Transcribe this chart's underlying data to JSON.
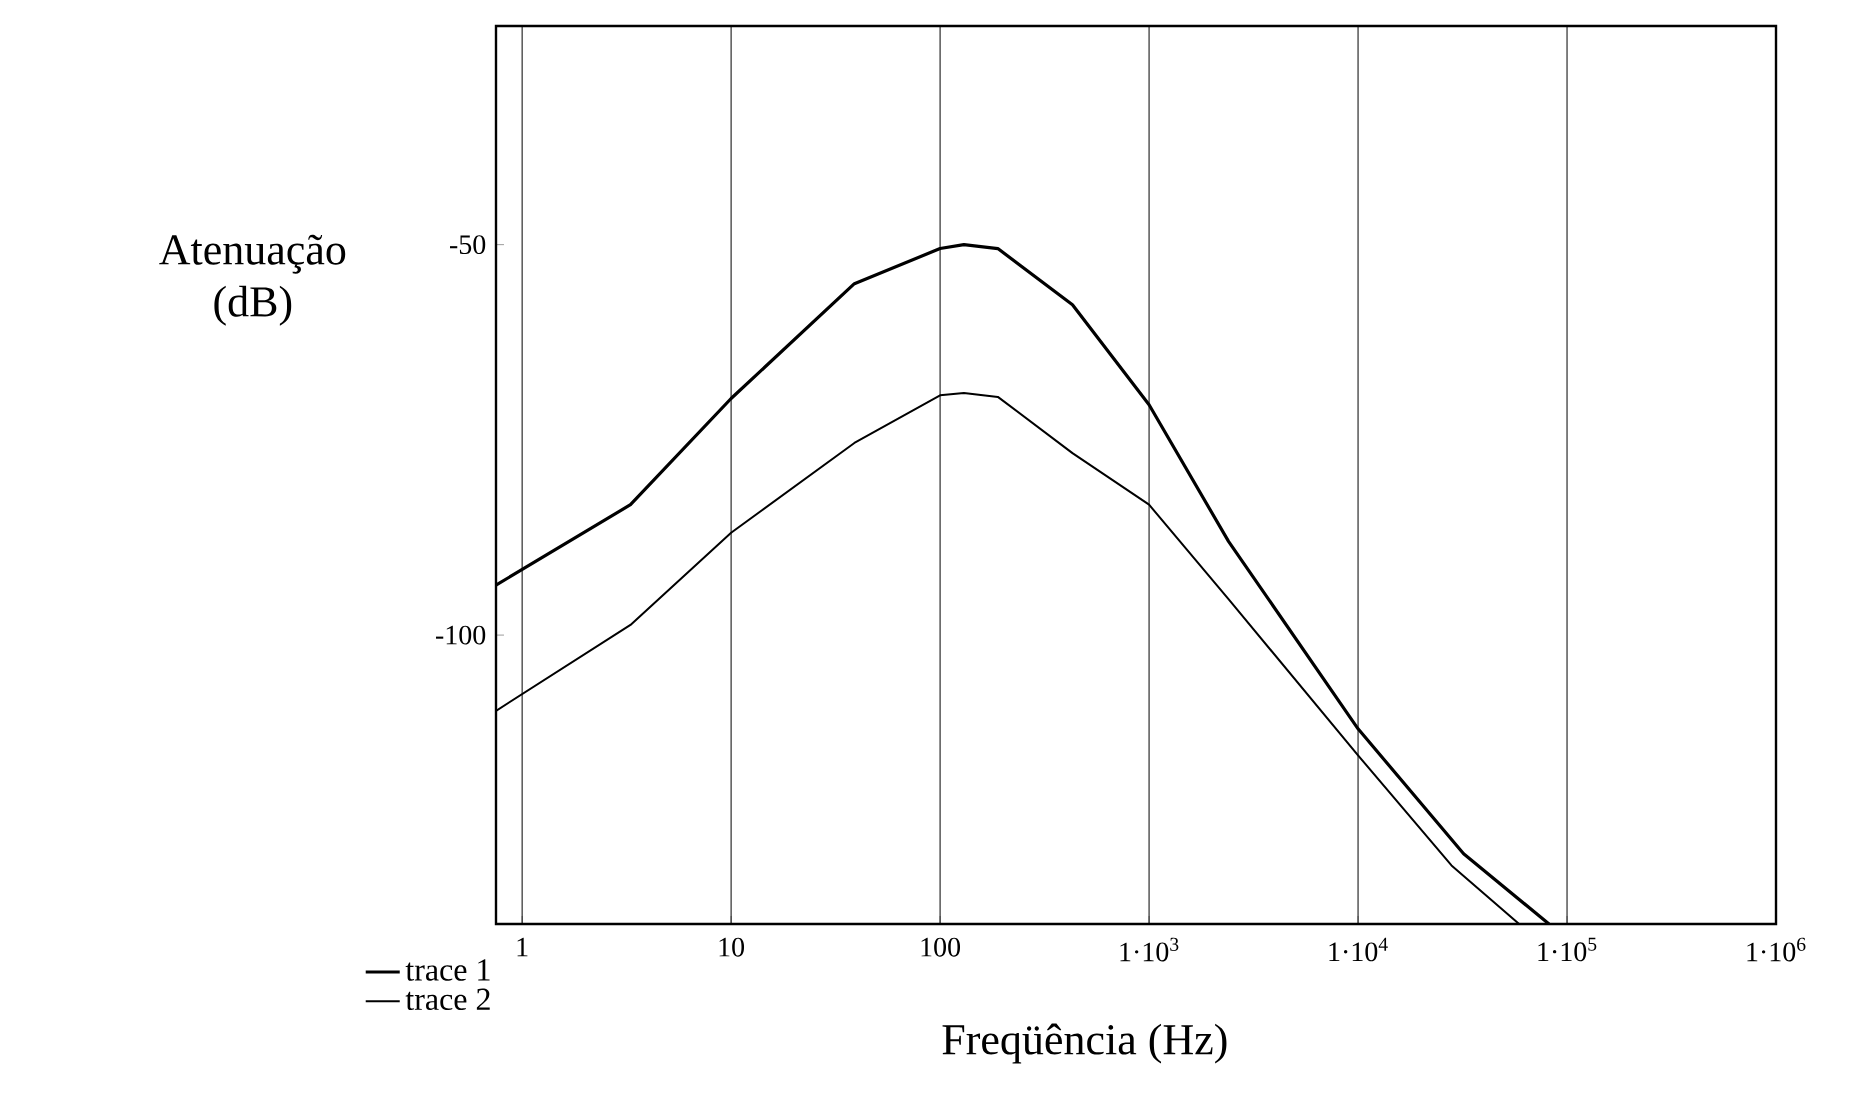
{
  "chart_data": {
    "type": "line",
    "xlabel": "Freqüência (Hz)",
    "ylabel": "Atenuação (dB)",
    "log": "x",
    "grid": "x",
    "legend": "bottom left",
    "line_style": "solid",
    "marker": "none",
    "xlim": [
      0.75,
      1000000
    ],
    "ylim": [
      -137,
      -22
    ],
    "xticks": [
      1,
      10,
      100,
      {
        "value": 1000,
        "label": "1·10$^{3}$"
      },
      {
        "value": 10000,
        "label": "1·10$^{4}$"
      },
      {
        "value": 100000,
        "label": "1·10$^{5}$"
      },
      {
        "value": 1000000,
        "label": "1·10$^{6}$"
      }
    ],
    "yticks": [
      -50,
      -100
    ],
    "series": [
      {
        "name": "trace 1",
        "color": "#000000",
        "x": [
          0.75,
          3.3,
          10,
          38.9,
          100,
          130,
          189,
          430,
          1000,
          2400,
          10000,
          32000,
          82000
        ],
        "values": [
          -93.6,
          -83.3,
          -69.7,
          -55,
          -50.5,
          -50,
          -50.5,
          -57.7,
          -70.5,
          -88,
          -112,
          -128,
          -137
        ]
      },
      {
        "name": "trace 2",
        "color": "#000000",
        "x": [
          0.75,
          3.3,
          10,
          38.9,
          100,
          130,
          189,
          430,
          1000,
          2400,
          10000,
          28000,
          59000
        ],
        "values": [
          -109.7,
          -98.7,
          -86.9,
          -75.4,
          -69.3,
          -69,
          -69.5,
          -76.7,
          -83.3,
          -95.4,
          -115.4,
          -129.5,
          -137
        ]
      }
    ]
  }
}
